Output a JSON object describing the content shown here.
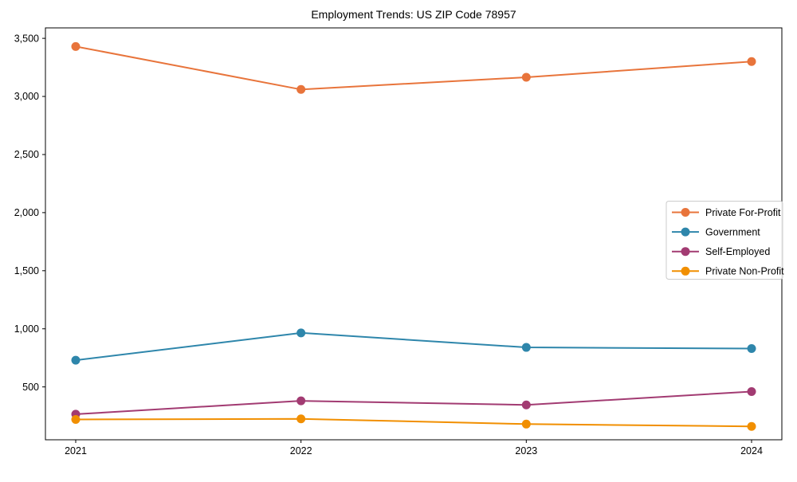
{
  "chart_data": {
    "type": "line",
    "title": "Employment Trends: US ZIP Code 78957",
    "xlabel": "",
    "ylabel": "",
    "categories": [
      "2021",
      "2022",
      "2023",
      "2024"
    ],
    "series": [
      {
        "name": "Private For-Profit",
        "color": "#e8743b",
        "values": [
          3430,
          3060,
          3165,
          3300
        ]
      },
      {
        "name": "Government",
        "color": "#2e86ab",
        "values": [
          730,
          965,
          840,
          830
        ]
      },
      {
        "name": "Self-Employed",
        "color": "#a23b72",
        "values": [
          265,
          380,
          345,
          460
        ]
      },
      {
        "name": "Private Non-Profit",
        "color": "#f18f01",
        "values": [
          220,
          225,
          180,
          160
        ]
      }
    ],
    "yticks": [
      500,
      1000,
      1500,
      2000,
      2500,
      3000,
      3500
    ],
    "ytick_labels": [
      "500",
      "1,000",
      "1,500",
      "2,000",
      "2,500",
      "3,000",
      "3,500"
    ],
    "ylim": [
      45,
      3590
    ],
    "grid": false,
    "legend_position": "center-right",
    "marker": "circle",
    "axis_color": "#000000",
    "legend_border_color": "#cccccc",
    "legend_background": "#ffffff"
  }
}
